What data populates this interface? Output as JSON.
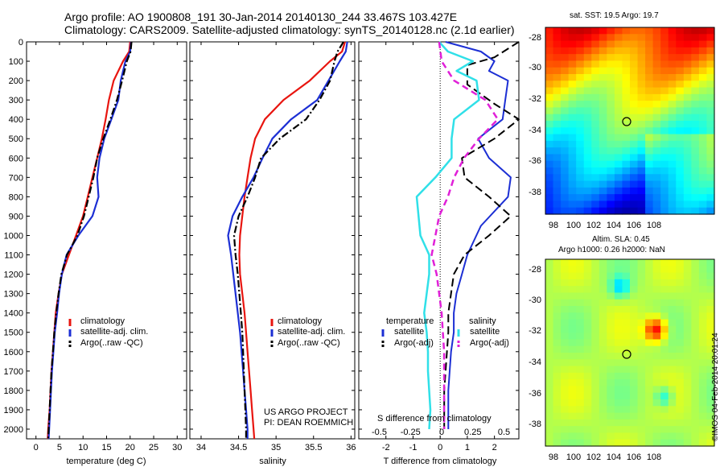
{
  "header": {
    "line1": "Argo profile: AO 1900808_191 30-Jan-2014 20140130_244 33.467S 103.427E",
    "line2": "Climatology: CARS2009. Satellite-adjusted climatology: synTS_20140128.nc (2.1d earlier)"
  },
  "colors": {
    "climatology": "#e8150f",
    "satellite": "#1c2fd4",
    "argo": "#000000",
    "temp_sat": "#1c2fd4",
    "sal_sat": "#30e0e8",
    "sal_argo": "#e020d8"
  },
  "depth_ticks": [
    "0",
    "100",
    "200",
    "300",
    "400",
    "500",
    "600",
    "700",
    "800",
    "900",
    "1000",
    "1100",
    "1200",
    "1300",
    "1400",
    "1500",
    "1600",
    "1700",
    "1800",
    "1900",
    "2000"
  ],
  "panels": {
    "temperature": {
      "xlabel": "temperature (deg C)",
      "xticks": [
        "0",
        "5",
        "10",
        "15",
        "20",
        "25",
        "30"
      ],
      "legend": [
        "climatology",
        "satellite-adj. clim.",
        "Argo(..raw -QC)"
      ]
    },
    "salinity": {
      "xlabel": "salinity",
      "xticks": [
        "34",
        "34.5",
        "35",
        "35.5",
        "36"
      ],
      "legend": [
        "climatology",
        "satellite-adj. clim.",
        "Argo(..raw -QC)"
      ],
      "credit1": "US ARGO PROJECT",
      "credit2": "PI: DEAN ROEMMICH"
    },
    "difference": {
      "xlabel": "T difference from climatology",
      "xticks": [
        "-2",
        "-1",
        "0",
        "1",
        "2"
      ],
      "top_label": "S difference from climatology",
      "top_ticks": [
        "-0.5",
        "-0.25",
        "0",
        "0.25",
        "0.5"
      ],
      "legend_temp_title": "temperature",
      "legend_sal_title": "salinity",
      "legend_temp": [
        "satellite",
        "Argo(-adj)"
      ],
      "legend_sal": [
        "satellite",
        "Argo(-adj)"
      ]
    }
  },
  "maps": {
    "sst_title": "sat. SST: 19.5 Argo: 19.7",
    "sla_title1": "Altim. SLA: 0.45",
    "sla_title2": "Argo h1000: 0.26 h2000: NaN",
    "lat_ticks": [
      "-28",
      "-30",
      "-32",
      "-34",
      "-36",
      "-38"
    ],
    "lon_ticks": [
      "98",
      "100",
      "102",
      "104",
      "106",
      "108"
    ],
    "stamp": "©IMOS 04-Feb-2014 20:01:24"
  },
  "chart_data": [
    {
      "type": "line",
      "xlabel": "temperature (deg C)",
      "ylabel": "",
      "xlim": [
        -2,
        32
      ],
      "ylim": [
        2050,
        0
      ],
      "series": [
        {
          "name": "climatology",
          "x": [
            20.0,
            19.8,
            18.5,
            16.5,
            15.5,
            14.8,
            14.0,
            13.0,
            12.0,
            11.0,
            10.0,
            8.5,
            7.0,
            5.5,
            4.8,
            4.2,
            3.9,
            3.6,
            3.3,
            3.1,
            2.9,
            2.6,
            2.5
          ],
          "y": [
            0,
            50,
            100,
            200,
            300,
            400,
            500,
            600,
            700,
            800,
            900,
            1000,
            1100,
            1200,
            1300,
            1400,
            1500,
            1600,
            1700,
            1800,
            1900,
            2000,
            2050
          ]
        },
        {
          "name": "satellite-adj. clim.",
          "x": [
            20.2,
            20.0,
            19.0,
            18.0,
            17.5,
            16.0,
            14.5,
            13.5,
            13.0,
            13.3,
            12.0,
            9.0,
            6.5,
            5.5,
            4.9,
            4.5,
            4.0,
            3.7,
            3.4,
            3.2,
            3.0,
            2.8,
            2.7
          ],
          "y": [
            0,
            50,
            100,
            200,
            300,
            400,
            500,
            600,
            700,
            800,
            900,
            1000,
            1100,
            1200,
            1300,
            1400,
            1500,
            1600,
            1700,
            1800,
            1900,
            2000,
            2050
          ]
        },
        {
          "name": "Argo(..raw -QC)",
          "x": [
            20.3,
            20.1,
            19.3,
            18.3,
            17.2,
            15.8,
            14.3,
            13.0,
            12.2,
            11.2,
            10.2,
            8.8,
            6.6,
            5.4,
            4.8,
            4.3,
            3.9,
            3.6,
            3.3,
            3.1,
            2.9,
            2.7,
            2.6
          ],
          "y": [
            0,
            50,
            100,
            200,
            300,
            400,
            500,
            600,
            700,
            800,
            900,
            1000,
            1100,
            1200,
            1300,
            1400,
            1500,
            1600,
            1700,
            1800,
            1900,
            2000,
            2050
          ]
        }
      ]
    },
    {
      "type": "line",
      "xlabel": "salinity",
      "ylabel": "",
      "xlim": [
        33.85,
        36.05
      ],
      "ylim": [
        2050,
        0
      ],
      "series": [
        {
          "name": "climatology",
          "x": [
            35.92,
            35.88,
            35.72,
            35.45,
            35.1,
            34.85,
            34.72,
            34.66,
            34.62,
            34.58,
            34.55,
            34.52,
            34.51,
            34.52,
            34.55,
            34.58,
            34.6,
            34.62,
            34.64,
            34.66,
            34.68,
            34.7,
            34.71
          ],
          "y": [
            0,
            50,
            100,
            200,
            300,
            400,
            500,
            600,
            700,
            800,
            900,
            1000,
            1100,
            1200,
            1300,
            1400,
            1500,
            1600,
            1700,
            1800,
            1900,
            2000,
            2050
          ]
        },
        {
          "name": "satellite-adj. clim.",
          "x": [
            35.95,
            35.93,
            35.85,
            35.7,
            35.55,
            35.2,
            34.95,
            34.82,
            34.7,
            34.55,
            34.42,
            34.36,
            34.4,
            34.43,
            34.46,
            34.49,
            34.52,
            34.54,
            34.56,
            34.58,
            34.6,
            34.62,
            34.62
          ],
          "y": [
            0,
            50,
            100,
            200,
            300,
            400,
            500,
            600,
            700,
            800,
            900,
            1000,
            1100,
            1200,
            1300,
            1400,
            1500,
            1600,
            1700,
            1800,
            1900,
            2000,
            2050
          ]
        },
        {
          "name": "Argo(..raw -QC)",
          "x": [
            35.9,
            35.82,
            35.78,
            35.72,
            35.58,
            35.4,
            35.05,
            34.8,
            34.72,
            34.62,
            34.5,
            34.44,
            34.46,
            34.49,
            34.51,
            34.53,
            34.55,
            34.56,
            34.57,
            34.58,
            34.59,
            34.6,
            34.6
          ],
          "y": [
            0,
            50,
            100,
            200,
            300,
            400,
            500,
            600,
            700,
            800,
            900,
            1000,
            1100,
            1200,
            1300,
            1400,
            1500,
            1600,
            1700,
            1800,
            1900,
            2000,
            2050
          ]
        }
      ]
    },
    {
      "type": "line",
      "xlabel": "T difference from climatology",
      "ylabel": "",
      "xlim": [
        -3,
        2.9
      ],
      "ylim": [
        2050,
        0
      ],
      "series": [
        {
          "name": "satellite",
          "x": [
            0.2,
            1.5,
            2.0,
            1.8,
            2.5,
            2.4,
            2.3,
            1.4,
            1.8,
            2.6,
            2.5,
            1.5,
            1.0,
            0.8,
            0.6,
            0.5,
            0.5,
            0.4,
            0.35,
            0.3,
            0.3,
            0.3
          ],
          "y": [
            0,
            50,
            100,
            150,
            200,
            300,
            400,
            500,
            600,
            700,
            800,
            950,
            1100,
            1200,
            1300,
            1400,
            1500,
            1600,
            1700,
            1800,
            1900,
            2000
          ]
        },
        {
          "name": "Argo(-adj)",
          "x": [
            3.0,
            2.0,
            1.0,
            1.0,
            2.0,
            3.0,
            2.0,
            0.8,
            0.9,
            1.8,
            2.6,
            1.8,
            0.9,
            0.5,
            0.4,
            0.3,
            0.3,
            0.25,
            0.2,
            0.15,
            0.15,
            0.15
          ],
          "y": [
            0,
            80,
            120,
            220,
            320,
            400,
            500,
            600,
            700,
            800,
            900,
            1000,
            1100,
            1200,
            1300,
            1400,
            1500,
            1600,
            1700,
            1800,
            1900,
            2000
          ]
        }
      ]
    },
    {
      "type": "line",
      "xlabel": "S difference from climatology",
      "ylabel": "",
      "xlim": [
        -0.75,
        0.75
      ],
      "ylim": [
        2050,
        0
      ],
      "series": [
        {
          "name": "satellite",
          "x": [
            -0.02,
            0.05,
            0.25,
            0.12,
            0.28,
            0.3,
            0.1,
            0.08,
            0.08,
            -0.05,
            -0.2,
            -0.17,
            -0.1,
            -0.1,
            -0.12,
            -0.14,
            -0.12,
            -0.11,
            -0.11,
            -0.1,
            -0.09,
            -0.1
          ],
          "y": [
            0,
            50,
            100,
            150,
            200,
            300,
            400,
            500,
            600,
            700,
            800,
            1000,
            1100,
            1200,
            1300,
            1400,
            1500,
            1600,
            1700,
            1800,
            1900,
            2000
          ]
        },
        {
          "name": "Argo(-adj)",
          "x": [
            -0.02,
            0.0,
            0.1,
            0.35,
            0.45,
            0.3,
            0.18,
            0.1,
            0.05,
            -0.02,
            -0.05,
            -0.08,
            -0.04,
            -0.02,
            0.0,
            0.01,
            0.02,
            0.02,
            0.02,
            0.02,
            0.02
          ],
          "y": [
            0,
            100,
            200,
            300,
            400,
            500,
            600,
            700,
            800,
            900,
            1000,
            1100,
            1200,
            1300,
            1400,
            1500,
            1600,
            1700,
            1800,
            1900,
            2000
          ]
        }
      ]
    }
  ]
}
